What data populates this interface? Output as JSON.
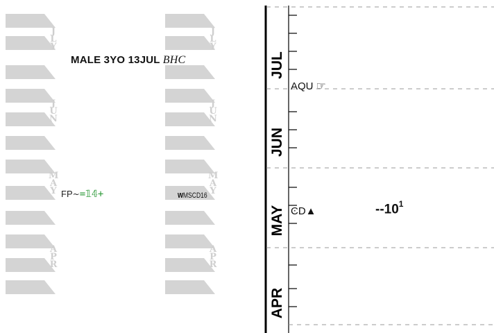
{
  "left_panel": {
    "month_columns": [
      {
        "letters": [
          "J",
          "L",
          "Y"
        ]
      },
      {
        "letters": [
          "J",
          "U",
          "N"
        ]
      },
      {
        "letters": [
          "M",
          "A",
          "Y"
        ]
      },
      {
        "letters": [
          "A",
          "P",
          "R"
        ]
      }
    ],
    "caption": {
      "text": "MALE  3YO  13JUL",
      "course": "BHC"
    },
    "fp_entry": {
      "prefix": "FP",
      "tilde": "~",
      "figure": "=𝟙𝟜+"
    },
    "mscd_entry": {
      "w": "w",
      "text": "MSCD16"
    }
  },
  "timeline": {
    "months": [
      "JUL",
      "JUN",
      "MAY",
      "APR"
    ],
    "events": {
      "aqu": {
        "label": "AQU",
        "icon": "☞"
      },
      "cd": {
        "label": "ϾD▲"
      }
    },
    "score": {
      "value": "--10",
      "superscript": "1"
    }
  }
}
